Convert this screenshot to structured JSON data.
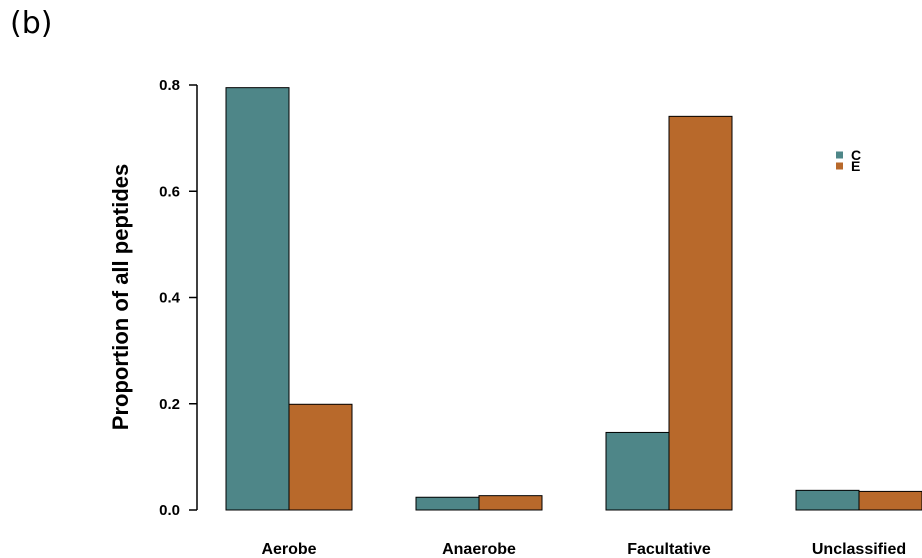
{
  "panel_label": "(b)",
  "chart_data": {
    "type": "bar",
    "title": "",
    "xlabel": "",
    "ylabel": "Proportion of all peptides",
    "categories": [
      "Aerobe",
      "Anaerobe",
      "Facultative",
      "Unclassified"
    ],
    "series": [
      {
        "name": "C",
        "color": "#4e8688",
        "values": [
          0.795,
          0.024,
          0.146,
          0.037
        ]
      },
      {
        "name": "E",
        "color": "#b8692b",
        "values": [
          0.199,
          0.027,
          0.741,
          0.035
        ]
      }
    ],
    "ylim": [
      0,
      0.8
    ],
    "yticks": [
      "0.0",
      "0.2",
      "0.4",
      "0.6",
      "0.8"
    ],
    "legend_position": "top-right",
    "grid": false
  }
}
